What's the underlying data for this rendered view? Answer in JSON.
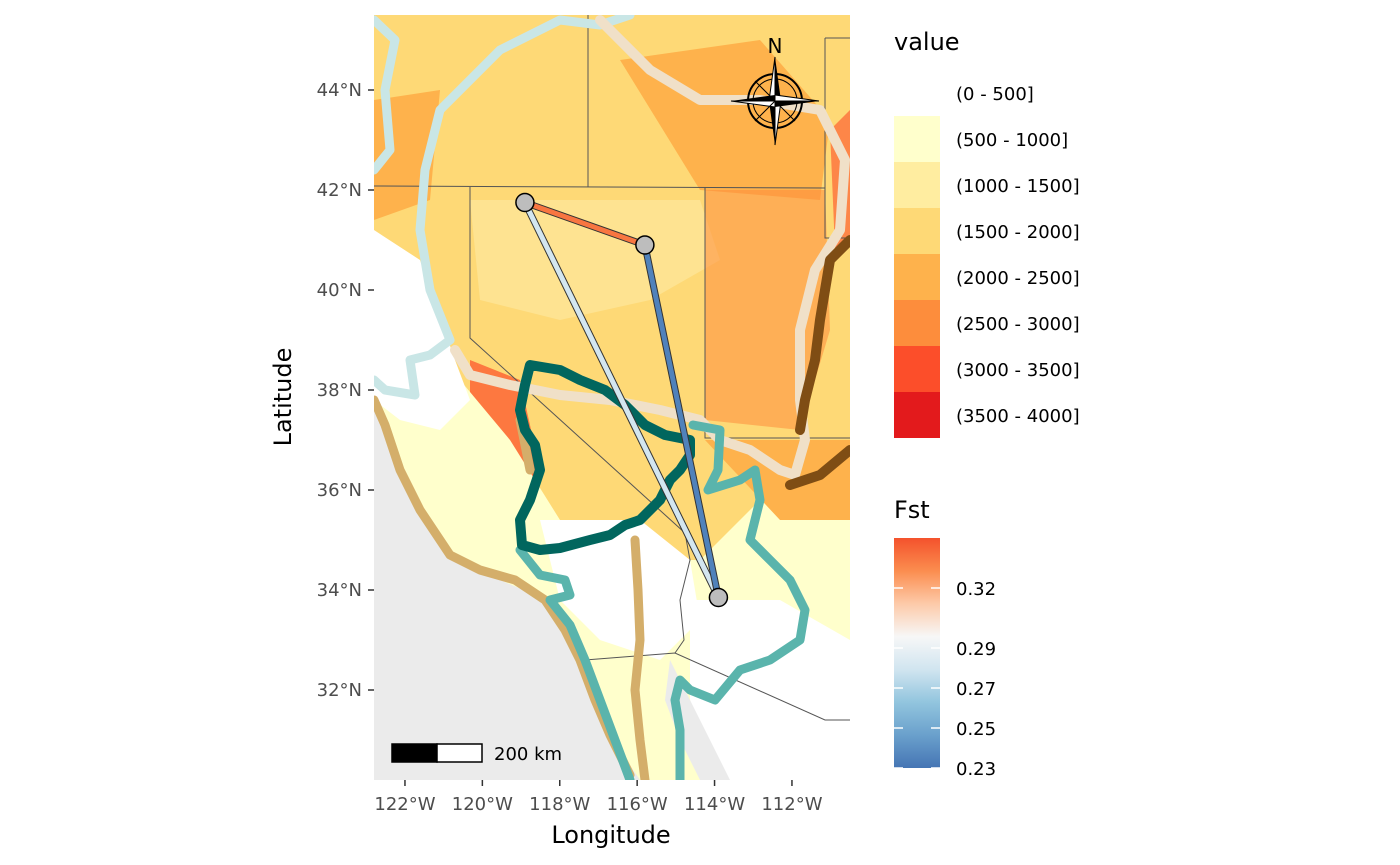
{
  "axes": {
    "xlabel": "Longitude",
    "ylabel": "Latitude",
    "x_ticks": [
      "122°W",
      "120°W",
      "118°W",
      "116°W",
      "114°W",
      "112°W"
    ],
    "y_ticks": [
      "44°N",
      "42°N",
      "40°N",
      "38°N",
      "36°N",
      "34°N",
      "32°N"
    ]
  },
  "north_arrow": {
    "label": "N"
  },
  "scale_bar": {
    "label": "200 km"
  },
  "legend_value": {
    "title": "value",
    "items": [
      {
        "label": "(0 - 500]",
        "color": "#ffffff"
      },
      {
        "label": "(500 - 1000]",
        "color": "#ffffcc"
      },
      {
        "label": "(1000 - 1500]",
        "color": "#ffeda0"
      },
      {
        "label": "(1500 - 2000]",
        "color": "#fed976"
      },
      {
        "label": "(2000 - 2500]",
        "color": "#feb24c"
      },
      {
        "label": "(2500 - 3000]",
        "color": "#fd8d3c"
      },
      {
        "label": "(3000 - 3500]",
        "color": "#fc4e2a"
      },
      {
        "label": "(3500 - 4000]",
        "color": "#e31a1c"
      }
    ]
  },
  "legend_fst": {
    "title": "Fst",
    "ticks": [
      "0.32",
      "0.29",
      "0.27",
      "0.25",
      "0.23"
    ],
    "gradient": [
      "#f4522c",
      "#fb8d4f",
      "#fdcaa9",
      "#f7f7f7",
      "#d1e5f0",
      "#92c5de",
      "#6aa0cc",
      "#4575b4"
    ]
  },
  "chart_data": {
    "type": "map",
    "xlim": [
      -122.8,
      -110.5
    ],
    "ylim": [
      30.2,
      45.5
    ],
    "sites": [
      {
        "lon": -118.9,
        "lat": 41.75
      },
      {
        "lon": -115.8,
        "lat": 40.9
      },
      {
        "lon": -113.9,
        "lat": 33.85
      }
    ],
    "edges": [
      {
        "from": 0,
        "to": 1,
        "fst": 0.335
      },
      {
        "from": 0,
        "to": 2,
        "fst": 0.28
      },
      {
        "from": 1,
        "to": 2,
        "fst": 0.235
      }
    ]
  }
}
